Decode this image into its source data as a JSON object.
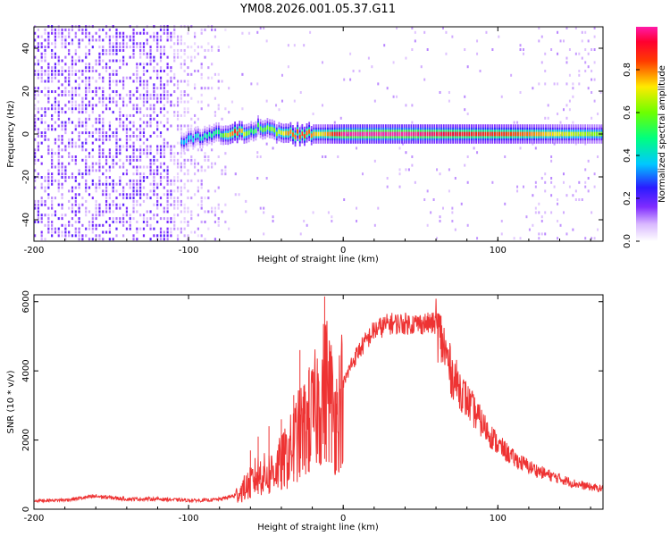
{
  "title": "YM08.2026.001.05.37.G11",
  "chart_data": [
    {
      "type": "heatmap",
      "name": "spectrogram",
      "xlabel": "Height of straight line (km)",
      "ylabel": "Frequency (Hz)",
      "xlim": [
        -200,
        168
      ],
      "ylim": [
        -50,
        50
      ],
      "xticks": [
        -200,
        -100,
        0,
        100
      ],
      "yticks": [
        -40,
        -20,
        0,
        20,
        40
      ],
      "xtick_labels": [
        "-200",
        "-100",
        "0",
        "100"
      ],
      "ytick_labels": [
        "-40",
        "-20",
        "0",
        "20",
        "40"
      ],
      "colorbar": {
        "label": "Normalized spectral amplitude",
        "range": [
          0,
          1
        ],
        "ticks": [
          0,
          0.2,
          0.4,
          0.6,
          0.8
        ],
        "tick_labels": [
          "0.0",
          "0.2",
          "0.4",
          "0.6",
          "0.8"
        ]
      },
      "noise_region": {
        "x_start": -200,
        "x_end": -80,
        "peak_amplitude": 0.2
      },
      "ridge": [
        {
          "x": -105,
          "freq": -4,
          "amp": 0.35
        },
        {
          "x": -95,
          "freq": -2,
          "amp": 0.4
        },
        {
          "x": -80,
          "freq": 0,
          "amp": 0.5
        },
        {
          "x": -70,
          "freq": 0,
          "amp": 0.9
        },
        {
          "x": -60,
          "freq": 2,
          "amp": 0.5
        },
        {
          "x": -55,
          "freq": 3,
          "amp": 0.55
        },
        {
          "x": -45,
          "freq": 1,
          "amp": 0.6
        },
        {
          "x": -35,
          "freq": 0,
          "amp": 0.8
        },
        {
          "x": -25,
          "freq": 0,
          "amp": 0.85
        },
        {
          "x": -15,
          "freq": 0,
          "amp": 0.7
        },
        {
          "x": 0,
          "freq": 0,
          "amp": 1.0
        },
        {
          "x": 40,
          "freq": 0,
          "amp": 1.0
        },
        {
          "x": 80,
          "freq": 0,
          "amp": 0.9
        },
        {
          "x": 105,
          "freq": 0,
          "amp": 0.85
        },
        {
          "x": 120,
          "freq": 0,
          "amp": 0.8
        },
        {
          "x": 140,
          "freq": 0,
          "amp": 0.7
        },
        {
          "x": 168,
          "freq": 0,
          "amp": 0.6
        }
      ]
    },
    {
      "type": "line",
      "name": "snr",
      "xlabel": "Height of straight line (km)",
      "ylabel": "SNR (10 * v/v)",
      "xlim": [
        -200,
        168
      ],
      "ylim": [
        0,
        6200
      ],
      "xticks": [
        -200,
        -100,
        0,
        100
      ],
      "yticks": [
        0,
        2000,
        4000,
        6000
      ],
      "xtick_labels": [
        "-200",
        "-100",
        "0",
        "100"
      ],
      "ytick_labels": [
        "0",
        "2000",
        "4000",
        "6000"
      ],
      "color": "#ee3333",
      "series": [
        {
          "name": "SNR",
          "x": [
            -200,
            -180,
            -160,
            -140,
            -120,
            -100,
            -90,
            -80,
            -70,
            -60,
            -55,
            -50,
            -45,
            -40,
            -35,
            -30,
            -25,
            -20,
            -15,
            -10,
            -5,
            0,
            5,
            10,
            15,
            20,
            30,
            40,
            50,
            55,
            60,
            65,
            70,
            80,
            90,
            100,
            110,
            120,
            130,
            140,
            150,
            160,
            168
          ],
          "y": [
            250,
            270,
            380,
            300,
            300,
            260,
            260,
            290,
            400,
            800,
            1100,
            1050,
            1200,
            1400,
            1700,
            2200,
            2500,
            2800,
            3400,
            3800,
            2700,
            3600,
            4200,
            4600,
            4900,
            5200,
            5400,
            5400,
            5400,
            5400,
            5400,
            4800,
            4000,
            3200,
            2500,
            1900,
            1500,
            1250,
            1050,
            900,
            750,
            650,
            600
          ]
        }
      ],
      "spikes": [
        {
          "x": -60,
          "y": 1700
        },
        {
          "x": -55,
          "y": 2100
        },
        {
          "x": -48,
          "y": 2400
        },
        {
          "x": -40,
          "y": 2600
        },
        {
          "x": -32,
          "y": 3300
        },
        {
          "x": -28,
          "y": 4600
        },
        {
          "x": -22,
          "y": 4100
        },
        {
          "x": -12,
          "y": 6150
        },
        {
          "x": -5,
          "y": 3400
        }
      ]
    }
  ]
}
